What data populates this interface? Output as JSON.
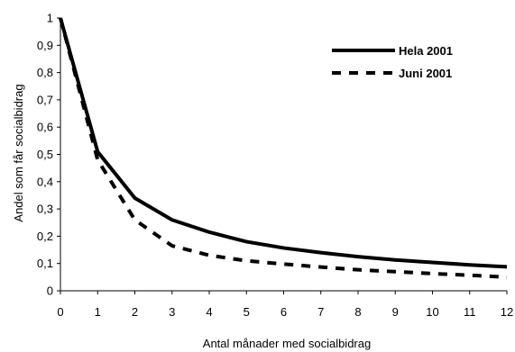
{
  "chart_data": {
    "type": "line",
    "title": "",
    "xlabel": "Antal månader med socialbidrag",
    "ylabel": "Andel som får socialbidrag",
    "xlim": [
      0,
      12
    ],
    "ylim": [
      0,
      1
    ],
    "x_ticks": [
      "0",
      "1",
      "2",
      "3",
      "4",
      "5",
      "6",
      "7",
      "8",
      "9",
      "10",
      "11",
      "12"
    ],
    "y_ticks": [
      "0",
      "0,1",
      "0,2",
      "0,3",
      "0,4",
      "0,5",
      "0,6",
      "0,7",
      "0,8",
      "0,9",
      "1"
    ],
    "grid": false,
    "legend_position": "top-right",
    "x": [
      0,
      1,
      2,
      3,
      4,
      5,
      6,
      7,
      8,
      9,
      10,
      11,
      12
    ],
    "series": [
      {
        "name": "Hela 2001",
        "style": "solid",
        "color": "#000000",
        "values": [
          1.0,
          0.51,
          0.34,
          0.26,
          0.215,
          0.18,
          0.157,
          0.14,
          0.125,
          0.113,
          0.104,
          0.095,
          0.088
        ]
      },
      {
        "name": "Juni 2001",
        "style": "dashed",
        "color": "#000000",
        "values": [
          1.0,
          0.48,
          0.26,
          0.165,
          0.13,
          0.11,
          0.098,
          0.087,
          0.077,
          0.07,
          0.063,
          0.057,
          0.05
        ]
      }
    ]
  }
}
